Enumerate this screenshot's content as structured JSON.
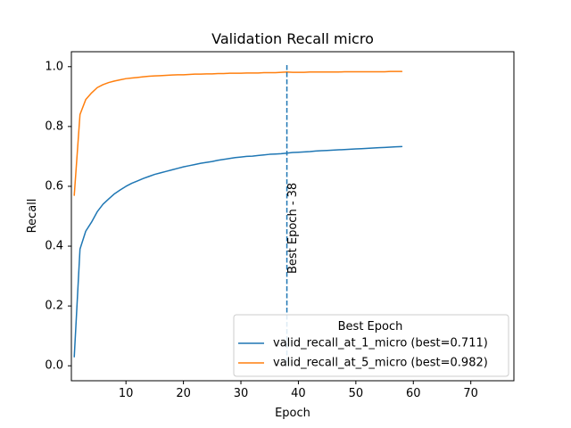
{
  "chart_data": {
    "type": "line",
    "title": "Validation Recall micro",
    "xlabel": "Epoch",
    "ylabel": "Recall",
    "xlim": [
      0.5,
      77.5
    ],
    "ylim": [
      -0.05,
      1.05
    ],
    "xticks": [
      10,
      20,
      30,
      40,
      50,
      60,
      70
    ],
    "yticks": [
      0.0,
      0.2,
      0.4,
      0.6,
      0.8,
      1.0
    ],
    "xtick_labels": [
      "10",
      "20",
      "30",
      "40",
      "50",
      "60",
      "70"
    ],
    "ytick_labels": [
      "0.0",
      "0.2",
      "0.4",
      "0.6",
      "0.8",
      "1.0"
    ],
    "grid": false,
    "legend": {
      "title": "Best Epoch",
      "placement": "lower-right"
    },
    "best_epoch": {
      "x": 38,
      "label": "Best Epoch - 38",
      "color": "#1f77b4",
      "style": "dashed"
    },
    "x": [
      1,
      2,
      3,
      4,
      5,
      6,
      7,
      8,
      9,
      10,
      11,
      12,
      13,
      14,
      15,
      16,
      17,
      18,
      19,
      20,
      21,
      22,
      23,
      24,
      25,
      26,
      27,
      28,
      29,
      30,
      31,
      32,
      33,
      34,
      35,
      36,
      37,
      38,
      39,
      40,
      41,
      42,
      43,
      44,
      45,
      46,
      47,
      48,
      49,
      50,
      51,
      52,
      53,
      54,
      55,
      56,
      57,
      58
    ],
    "series": [
      {
        "name": "valid_recall_at_1_micro (best=0.711)",
        "color": "#1f77b4",
        "values": [
          0.03,
          0.39,
          0.45,
          0.48,
          0.515,
          0.54,
          0.558,
          0.575,
          0.588,
          0.6,
          0.61,
          0.618,
          0.626,
          0.633,
          0.64,
          0.645,
          0.65,
          0.655,
          0.66,
          0.665,
          0.669,
          0.673,
          0.677,
          0.68,
          0.683,
          0.687,
          0.69,
          0.693,
          0.696,
          0.698,
          0.7,
          0.701,
          0.703,
          0.705,
          0.707,
          0.708,
          0.709,
          0.711,
          0.713,
          0.714,
          0.715,
          0.716,
          0.718,
          0.719,
          0.72,
          0.721,
          0.722,
          0.723,
          0.724,
          0.725,
          0.726,
          0.727,
          0.728,
          0.729,
          0.73,
          0.731,
          0.732,
          0.733
        ]
      },
      {
        "name": "valid_recall_at_5_micro (best=0.982)",
        "color": "#ff7f0e",
        "values": [
          0.57,
          0.84,
          0.89,
          0.912,
          0.93,
          0.94,
          0.947,
          0.952,
          0.956,
          0.96,
          0.962,
          0.964,
          0.966,
          0.968,
          0.969,
          0.97,
          0.971,
          0.972,
          0.973,
          0.973,
          0.974,
          0.975,
          0.975,
          0.976,
          0.976,
          0.977,
          0.977,
          0.978,
          0.978,
          0.978,
          0.979,
          0.979,
          0.979,
          0.98,
          0.98,
          0.98,
          0.981,
          0.982,
          0.981,
          0.981,
          0.981,
          0.982,
          0.982,
          0.982,
          0.982,
          0.982,
          0.982,
          0.983,
          0.983,
          0.983,
          0.983,
          0.983,
          0.983,
          0.983,
          0.983,
          0.984,
          0.984,
          0.984
        ]
      }
    ]
  }
}
